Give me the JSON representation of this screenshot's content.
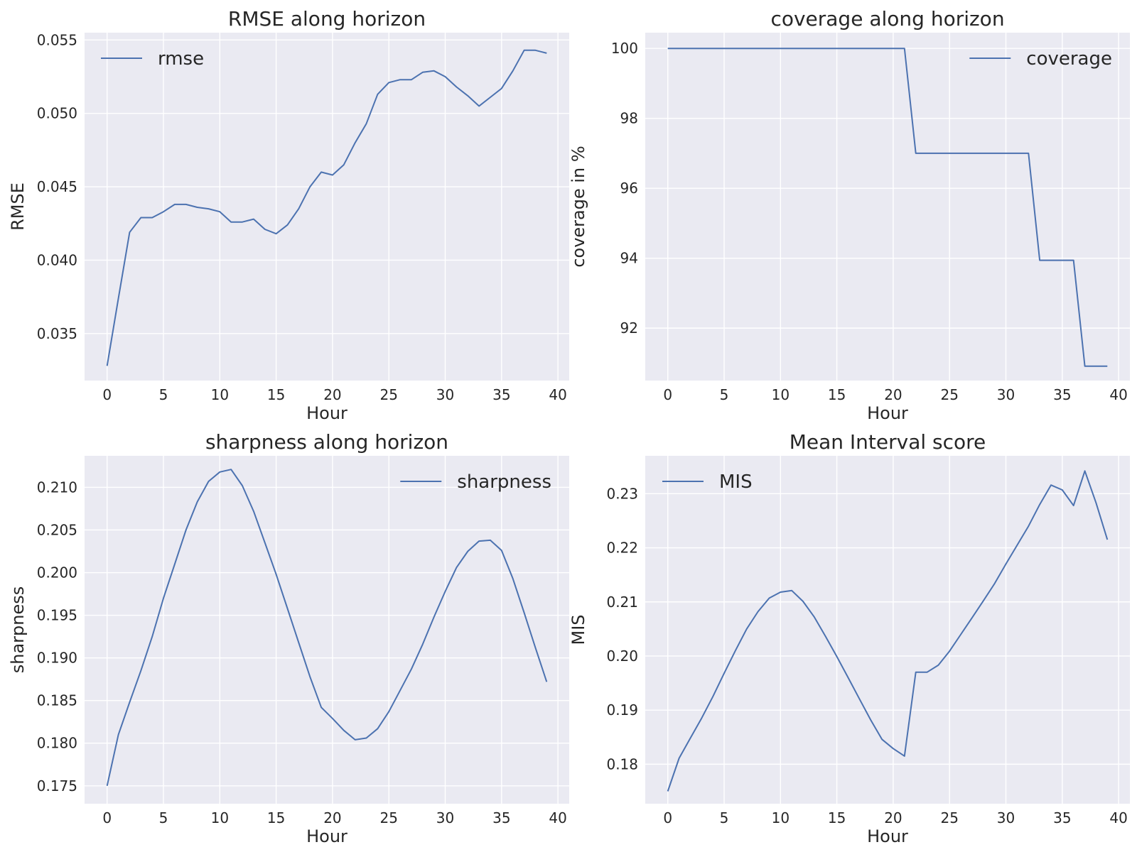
{
  "chart_data": [
    {
      "type": "line",
      "title": "RMSE along horizon",
      "xlabel": "Hour",
      "ylabel": "RMSE",
      "xlim": [
        -2,
        41
      ],
      "ylim": [
        0.0318,
        0.0555
      ],
      "xticks": [
        0,
        5,
        10,
        15,
        20,
        25,
        30,
        35,
        40
      ],
      "yticks": [
        0.035,
        0.04,
        0.045,
        0.05,
        0.055
      ],
      "ytick_labels": [
        "0.035",
        "0.040",
        "0.045",
        "0.050",
        "0.055"
      ],
      "grid": true,
      "legend": "upper left",
      "color": "#4c72b0",
      "x": [
        0,
        1,
        2,
        3,
        4,
        5,
        6,
        7,
        8,
        9,
        10,
        11,
        12,
        13,
        14,
        15,
        16,
        17,
        18,
        19,
        20,
        21,
        22,
        23,
        24,
        25,
        26,
        27,
        28,
        29,
        30,
        31,
        32,
        33,
        34,
        35,
        36,
        37,
        38,
        39
      ],
      "series": [
        {
          "name": "rmse",
          "values": [
            0.0328,
            0.0374,
            0.0419,
            0.0429,
            0.0429,
            0.0433,
            0.0438,
            0.0438,
            0.0436,
            0.0435,
            0.0433,
            0.0426,
            0.0426,
            0.0428,
            0.0421,
            0.0418,
            0.0424,
            0.0435,
            0.045,
            0.046,
            0.0458,
            0.0465,
            0.048,
            0.0493,
            0.0513,
            0.0521,
            0.0523,
            0.0523,
            0.0528,
            0.0529,
            0.0525,
            0.0518,
            0.0512,
            0.0505,
            0.0511,
            0.0517,
            0.0529,
            0.0543,
            0.0543,
            0.0541
          ]
        }
      ]
    },
    {
      "type": "line",
      "title": "coverage along horizon",
      "xlabel": "Hour",
      "ylabel": "coverage in %",
      "xlim": [
        -2,
        41
      ],
      "ylim": [
        90.5,
        100.45
      ],
      "xticks": [
        0,
        5,
        10,
        15,
        20,
        25,
        30,
        35,
        40
      ],
      "yticks": [
        92,
        94,
        96,
        98,
        100
      ],
      "ytick_labels": [
        "92",
        "94",
        "96",
        "98",
        "100"
      ],
      "grid": true,
      "legend": "upper right",
      "color": "#4c72b0",
      "x": [
        0,
        1,
        2,
        3,
        4,
        5,
        6,
        7,
        8,
        9,
        10,
        11,
        12,
        13,
        14,
        15,
        16,
        17,
        18,
        19,
        20,
        21,
        22,
        23,
        24,
        25,
        26,
        27,
        28,
        29,
        30,
        31,
        32,
        33,
        34,
        35,
        36,
        37,
        38,
        39
      ],
      "series": [
        {
          "name": "coverage",
          "values": [
            100,
            100,
            100,
            100,
            100,
            100,
            100,
            100,
            100,
            100,
            100,
            100,
            100,
            100,
            100,
            100,
            100,
            100,
            100,
            100,
            100,
            100,
            97,
            97,
            97,
            97,
            97,
            97,
            97,
            97,
            97,
            97,
            97,
            93.94,
            93.94,
            93.94,
            93.94,
            90.91,
            90.91,
            90.91
          ]
        }
      ]
    },
    {
      "type": "line",
      "title": "sharpness along horizon",
      "xlabel": "Hour",
      "ylabel": "sharpness",
      "xlim": [
        -2,
        41
      ],
      "ylim": [
        0.1729,
        0.2137
      ],
      "xticks": [
        0,
        5,
        10,
        15,
        20,
        25,
        30,
        35,
        40
      ],
      "yticks": [
        0.175,
        0.18,
        0.185,
        0.19,
        0.195,
        0.2,
        0.205,
        0.21
      ],
      "ytick_labels": [
        "0.175",
        "0.180",
        "0.185",
        "0.190",
        "0.195",
        "0.200",
        "0.205",
        "0.210"
      ],
      "grid": true,
      "legend": "upper right",
      "color": "#4c72b0",
      "x": [
        0,
        1,
        2,
        3,
        4,
        5,
        6,
        7,
        8,
        9,
        10,
        11,
        12,
        13,
        14,
        15,
        16,
        17,
        18,
        19,
        20,
        21,
        22,
        23,
        24,
        25,
        26,
        27,
        28,
        29,
        30,
        31,
        32,
        33,
        34,
        35,
        36,
        37,
        38,
        39
      ],
      "series": [
        {
          "name": "sharpness",
          "values": [
            0.175,
            0.181,
            0.1848,
            0.1885,
            0.1925,
            0.197,
            0.201,
            0.205,
            0.2083,
            0.2107,
            0.2118,
            0.2121,
            0.2102,
            0.2072,
            0.2035,
            0.1998,
            0.1958,
            0.1918,
            0.1878,
            0.1842,
            0.1829,
            0.1815,
            0.1804,
            0.1806,
            0.1817,
            0.1837,
            0.1862,
            0.1887,
            0.1916,
            0.1948,
            0.1978,
            0.2006,
            0.2025,
            0.2037,
            0.2038,
            0.2026,
            0.1993,
            0.1953,
            0.1912,
            0.1872
          ]
        }
      ]
    },
    {
      "type": "line",
      "title": "Mean Interval score",
      "xlabel": "Hour",
      "ylabel": "MIS",
      "xlim": [
        -2,
        41
      ],
      "ylim": [
        0.1727,
        0.237
      ],
      "xticks": [
        0,
        5,
        10,
        15,
        20,
        25,
        30,
        35,
        40
      ],
      "yticks": [
        0.18,
        0.19,
        0.2,
        0.21,
        0.22,
        0.23
      ],
      "ytick_labels": [
        "0.18",
        "0.19",
        "0.20",
        "0.21",
        "0.22",
        "0.23"
      ],
      "grid": true,
      "legend": "upper left",
      "color": "#4c72b0",
      "x": [
        0,
        1,
        2,
        3,
        4,
        5,
        6,
        7,
        8,
        9,
        10,
        11,
        12,
        13,
        14,
        15,
        16,
        17,
        18,
        19,
        20,
        21,
        22,
        23,
        24,
        25,
        26,
        27,
        28,
        29,
        30,
        31,
        32,
        33,
        34,
        35,
        36,
        37,
        38,
        39
      ],
      "series": [
        {
          "name": "MIS",
          "values": [
            0.175,
            0.1811,
            0.1848,
            0.1885,
            0.1925,
            0.1968,
            0.201,
            0.205,
            0.2082,
            0.2107,
            0.2118,
            0.2121,
            0.2101,
            0.2072,
            0.2036,
            0.1999,
            0.196,
            0.1921,
            0.1882,
            0.1846,
            0.1829,
            0.1815,
            0.197,
            0.197,
            0.1983,
            0.2009,
            0.204,
            0.2071,
            0.2102,
            0.2134,
            0.217,
            0.2205,
            0.224,
            0.228,
            0.2316,
            0.2307,
            0.2278,
            0.2342,
            0.2283,
            0.2215
          ]
        }
      ]
    }
  ]
}
